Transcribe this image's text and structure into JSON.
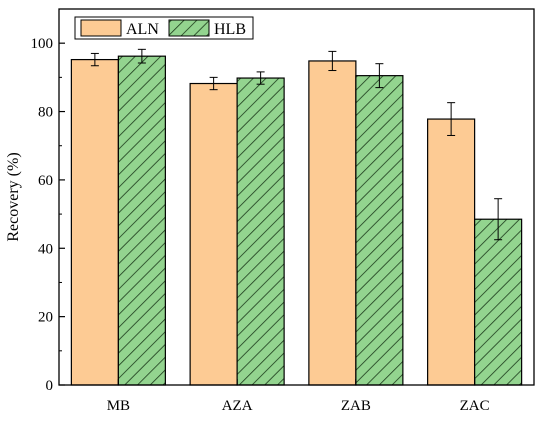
{
  "chart_data": {
    "type": "bar",
    "categories": [
      "MB",
      "AZA",
      "ZAB",
      "ZAC"
    ],
    "series": [
      {
        "name": "ALN",
        "values": [
          95.2,
          88.2,
          94.8,
          77.8
        ],
        "errors": [
          1.8,
          1.8,
          2.8,
          4.8
        ],
        "color": "#fdcb94",
        "pattern": "solid"
      },
      {
        "name": "HLB",
        "values": [
          96.2,
          89.8,
          90.5,
          48.5
        ],
        "errors": [
          2.0,
          1.8,
          3.5,
          6.0
        ],
        "color": "#93d48f",
        "pattern": "diagonal-hatch"
      }
    ],
    "ylabel": "Recovery (%)",
    "xlabel": "",
    "title": "",
    "ylim": [
      0,
      110
    ],
    "yticks": [
      0,
      20,
      40,
      60,
      80,
      100
    ],
    "grid": false,
    "legend": "top-left"
  }
}
